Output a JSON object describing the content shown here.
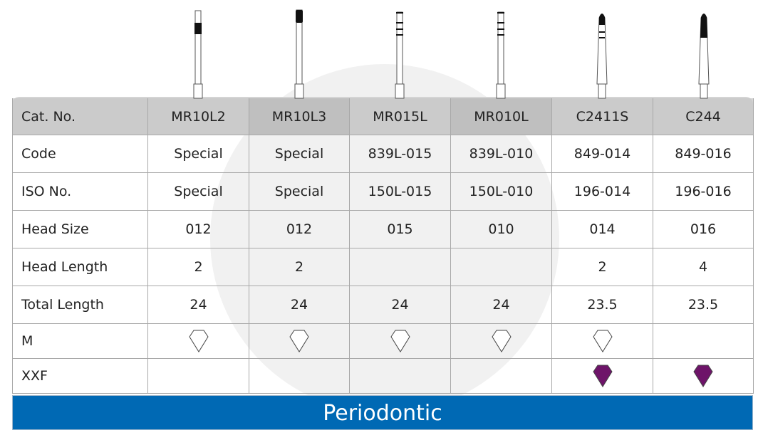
{
  "header": {
    "label": "Cat. No.",
    "items": [
      "MR10L2",
      "MR10L3",
      "MR015L",
      "MR010L",
      "C2411S",
      "C244"
    ]
  },
  "rows": [
    {
      "label": "Code",
      "values": [
        "Special",
        "Special",
        "839L-015",
        "839L-010",
        "849-014",
        "849-016"
      ]
    },
    {
      "label": "ISO No.",
      "values": [
        "Special",
        "Special",
        "150L-015",
        "150L-010",
        "196-014",
        "196-016"
      ]
    },
    {
      "label": "Head Size",
      "values": [
        "012",
        "012",
        "015",
        "010",
        "014",
        "016"
      ]
    },
    {
      "label": "Head Length",
      "values": [
        "2",
        "2",
        "",
        "",
        "2",
        "4"
      ]
    },
    {
      "label": "Total Length",
      "values": [
        "24",
        "24",
        "24",
        "24",
        "23.5",
        "23.5"
      ]
    }
  ],
  "grits": [
    {
      "label": "M",
      "present": [
        true,
        true,
        true,
        true,
        true,
        false
      ],
      "icon": "outline-diamond-icon",
      "color": "#ffffff"
    },
    {
      "label": "XXF",
      "present": [
        false,
        false,
        false,
        false,
        true,
        true
      ],
      "icon": "purple-diamond-icon",
      "color": "#6e1469"
    }
  ],
  "footer": {
    "title": "Periodontic",
    "color": "#0069b4"
  }
}
